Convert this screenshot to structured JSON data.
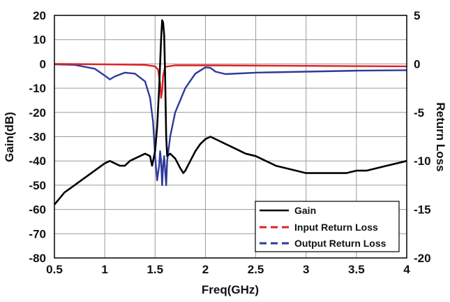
{
  "chart_data": {
    "type": "line",
    "xlabel": "Freq(GHz)",
    "ylabel": "Gain(dB)",
    "y2label": "Return Loss",
    "xlim": [
      0.5,
      4
    ],
    "ylim": [
      -80,
      20
    ],
    "y2lim": [
      -20,
      5
    ],
    "xticks": [
      "0.5",
      "1",
      "1.5",
      "2",
      "2.5",
      "3",
      "3.5",
      "4"
    ],
    "yticks": [
      "20",
      "10",
      "0",
      "-10",
      "-20",
      "-30",
      "-40",
      "-50",
      "-60",
      "-70",
      "-80"
    ],
    "y2ticks": [
      "5",
      "0",
      "-5",
      "-10",
      "-15",
      "-20"
    ],
    "grid": true,
    "legend_position": "bottom-right",
    "series": [
      {
        "name": "Gain",
        "axis": "left",
        "color": "#000000",
        "dash": "solid",
        "points": [
          [
            0.5,
            -58
          ],
          [
            0.6,
            -53
          ],
          [
            0.7,
            -50
          ],
          [
            0.8,
            -47
          ],
          [
            0.9,
            -44
          ],
          [
            1.0,
            -41
          ],
          [
            1.05,
            -40
          ],
          [
            1.1,
            -41
          ],
          [
            1.15,
            -42
          ],
          [
            1.2,
            -42
          ],
          [
            1.25,
            -40
          ],
          [
            1.3,
            -39
          ],
          [
            1.35,
            -38
          ],
          [
            1.4,
            -37
          ],
          [
            1.45,
            -38
          ],
          [
            1.47,
            -42
          ],
          [
            1.5,
            -36
          ],
          [
            1.52,
            -26
          ],
          [
            1.54,
            -10
          ],
          [
            1.56,
            10
          ],
          [
            1.57,
            18
          ],
          [
            1.58,
            17
          ],
          [
            1.59,
            12
          ],
          [
            1.6,
            -5
          ],
          [
            1.61,
            -30
          ],
          [
            1.62,
            -38
          ],
          [
            1.65,
            -37
          ],
          [
            1.7,
            -39
          ],
          [
            1.75,
            -43
          ],
          [
            1.78,
            -45
          ],
          [
            1.8,
            -44
          ],
          [
            1.85,
            -40
          ],
          [
            1.9,
            -36
          ],
          [
            1.95,
            -33
          ],
          [
            2.0,
            -31
          ],
          [
            2.05,
            -30
          ],
          [
            2.1,
            -31
          ],
          [
            2.2,
            -33
          ],
          [
            2.3,
            -35
          ],
          [
            2.4,
            -37
          ],
          [
            2.5,
            -38
          ],
          [
            2.6,
            -40
          ],
          [
            2.7,
            -42
          ],
          [
            2.8,
            -43
          ],
          [
            2.9,
            -44
          ],
          [
            3.0,
            -45
          ],
          [
            3.1,
            -45
          ],
          [
            3.2,
            -45
          ],
          [
            3.3,
            -45
          ],
          [
            3.4,
            -45
          ],
          [
            3.5,
            -44
          ],
          [
            3.6,
            -44
          ],
          [
            3.7,
            -43
          ],
          [
            3.8,
            -42
          ],
          [
            3.9,
            -41
          ],
          [
            4.0,
            -40
          ]
        ]
      },
      {
        "name": "Input Return Loss",
        "axis": "right",
        "color": "#e02020",
        "dash": "solid",
        "points": [
          [
            0.5,
            0
          ],
          [
            1.0,
            -0.05
          ],
          [
            1.4,
            -0.1
          ],
          [
            1.5,
            -0.25
          ],
          [
            1.53,
            -0.6
          ],
          [
            1.55,
            -2.0
          ],
          [
            1.56,
            -3.5
          ],
          [
            1.57,
            -2.8
          ],
          [
            1.58,
            -1.2
          ],
          [
            1.6,
            -0.3
          ],
          [
            1.7,
            -0.15
          ],
          [
            2.0,
            -0.15
          ],
          [
            3.0,
            -0.2
          ],
          [
            4.0,
            -0.25
          ]
        ]
      },
      {
        "name": "Output Return Loss",
        "axis": "right",
        "color": "#2e3a9a",
        "dash": "solid",
        "points": [
          [
            0.5,
            -0.05
          ],
          [
            0.7,
            -0.1
          ],
          [
            0.9,
            -0.5
          ],
          [
            1.0,
            -1.2
          ],
          [
            1.05,
            -1.6
          ],
          [
            1.1,
            -1.3
          ],
          [
            1.2,
            -0.9
          ],
          [
            1.3,
            -1.0
          ],
          [
            1.4,
            -1.8
          ],
          [
            1.45,
            -3.5
          ],
          [
            1.48,
            -6.0
          ],
          [
            1.5,
            -9.5
          ],
          [
            1.52,
            -12.0
          ],
          [
            1.54,
            -10.5
          ],
          [
            1.55,
            -9.0
          ],
          [
            1.56,
            -10.0
          ],
          [
            1.57,
            -12.5
          ],
          [
            1.58,
            -10.5
          ],
          [
            1.59,
            -9.5
          ],
          [
            1.6,
            -11.0
          ],
          [
            1.61,
            -12.5
          ],
          [
            1.62,
            -10.0
          ],
          [
            1.65,
            -7.5
          ],
          [
            1.7,
            -5.0
          ],
          [
            1.8,
            -2.5
          ],
          [
            1.9,
            -1.0
          ],
          [
            2.0,
            -0.35
          ],
          [
            2.05,
            -0.4
          ],
          [
            2.1,
            -0.8
          ],
          [
            2.2,
            -1.05
          ],
          [
            2.5,
            -0.9
          ],
          [
            3.0,
            -0.8
          ],
          [
            3.5,
            -0.7
          ],
          [
            4.0,
            -0.65
          ]
        ]
      }
    ]
  }
}
